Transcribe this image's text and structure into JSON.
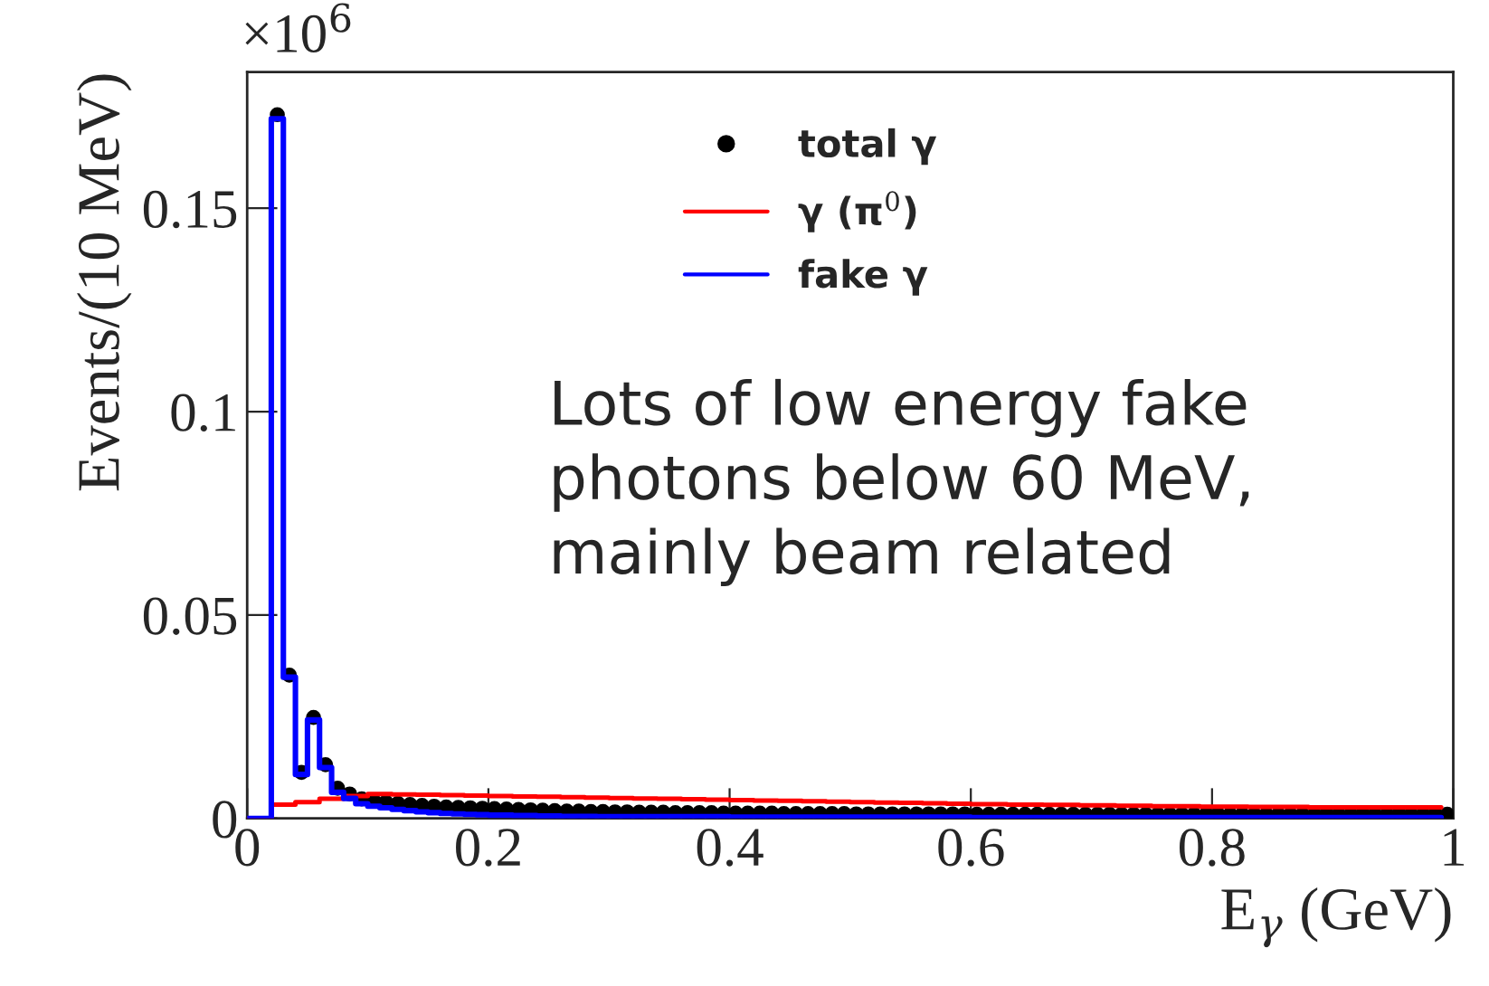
{
  "chart_data": {
    "type": "step",
    "xlabel": "E$_{γ}$ (GeV)",
    "ylabel": "Events/(10 MeV)",
    "x": [
      0,
      0.01,
      0.02,
      0.03,
      0.04,
      0.05,
      0.06,
      0.07,
      0.08,
      0.09,
      0.1,
      0.11,
      0.12,
      0.13,
      0.14,
      0.15,
      0.16,
      0.17,
      0.18,
      0.19,
      0.2,
      0.21,
      0.22,
      0.23,
      0.24,
      0.25,
      0.26,
      0.27,
      0.28,
      0.29,
      0.3,
      0.31,
      0.32,
      0.33,
      0.34,
      0.35,
      0.36,
      0.37,
      0.38,
      0.39,
      0.4,
      0.41,
      0.42,
      0.43,
      0.44,
      0.45,
      0.46,
      0.47,
      0.48,
      0.49,
      0.5,
      0.51,
      0.52,
      0.53,
      0.54,
      0.55,
      0.56,
      0.57,
      0.58,
      0.59,
      0.6,
      0.61,
      0.62,
      0.63,
      0.64,
      0.65,
      0.66,
      0.67,
      0.68,
      0.69,
      0.7,
      0.71,
      0.72,
      0.73,
      0.74,
      0.75,
      0.76,
      0.77,
      0.78,
      0.79,
      0.8,
      0.81,
      0.82,
      0.83,
      0.84,
      0.85,
      0.86,
      0.87,
      0.88,
      0.89,
      0.9,
      0.91,
      0.92,
      0.93,
      0.94,
      0.95,
      0.96,
      0.97,
      0.98,
      0.99
    ],
    "series": [
      {
        "name": "total γ",
        "type": "scatter",
        "marker": "circle",
        "color": "#000000",
        "x": [
          0.025,
          0.035,
          0.045,
          0.055,
          0.065,
          0.075,
          0.085,
          0.095,
          0.105,
          0.115,
          0.125,
          0.135,
          0.145,
          0.155,
          0.165,
          0.175,
          0.185,
          0.195,
          0.205,
          0.215,
          0.225,
          0.235,
          0.245,
          0.255,
          0.265,
          0.275,
          0.285,
          0.295,
          0.305,
          0.315,
          0.325,
          0.335,
          0.345,
          0.355,
          0.365,
          0.375,
          0.385,
          0.395,
          0.405,
          0.415,
          0.425,
          0.435,
          0.445,
          0.455,
          0.465,
          0.475,
          0.485,
          0.495,
          0.505,
          0.515,
          0.525,
          0.535,
          0.545,
          0.555,
          0.565,
          0.575,
          0.585,
          0.595,
          0.605,
          0.615,
          0.625,
          0.635,
          0.645,
          0.655,
          0.665,
          0.675,
          0.685,
          0.695,
          0.705,
          0.715,
          0.725,
          0.735,
          0.745,
          0.755,
          0.765,
          0.775,
          0.785,
          0.795,
          0.805,
          0.815,
          0.825,
          0.835,
          0.845,
          0.855,
          0.865,
          0.875,
          0.885,
          0.895,
          0.905,
          0.915,
          0.925,
          0.935,
          0.945,
          0.955,
          0.965,
          0.975,
          0.985,
          0.995
        ],
        "values": [
          0.173,
          0.0352,
          0.0113,
          0.0248,
          0.0132,
          0.0074,
          0.006,
          0.0048,
          0.0043,
          0.004,
          0.0037,
          0.0034,
          0.0032,
          0.003,
          0.0028,
          0.0027,
          0.0026,
          0.0025,
          0.0024,
          0.0023,
          0.0022,
          0.0021,
          0.002,
          0.0019,
          0.0018,
          0.0018,
          0.0017,
          0.0017,
          0.0016,
          0.0016,
          0.0015,
          0.0015,
          0.0015,
          0.0014,
          0.0014,
          0.0014,
          0.0014,
          0.0013,
          0.0013,
          0.0013,
          0.0013,
          0.0013,
          0.0012,
          0.0012,
          0.0012,
          0.0012,
          0.0012,
          0.0012,
          0.0011,
          0.0011,
          0.0011,
          0.0011,
          0.0011,
          0.0011,
          0.0011,
          0.0011,
          0.0011,
          0.0011,
          0.001,
          0.001,
          0.001,
          0.001,
          0.001,
          0.001,
          0.001,
          0.001,
          0.001,
          0.001,
          0.001,
          0.001,
          0.001,
          0.001,
          0.001,
          0.001,
          0.001,
          0.001,
          0.001,
          0.001,
          0.001,
          0.001,
          0.001,
          0.001,
          0.001,
          0.001,
          0.001,
          0.001,
          0.001,
          0.001,
          0.001,
          0.001,
          0.001,
          0.001,
          0.001,
          0.001,
          0.001,
          0.001,
          0.001,
          0.001
        ]
      },
      {
        "name": "γ (π$^{0}$)",
        "type": "step",
        "color": "#ff0000",
        "values": [
          0,
          0,
          0.0034,
          0.0034,
          0.004,
          0.004,
          0.0048,
          0.0048,
          0.0055,
          0.0055,
          0.006,
          0.006,
          0.0059,
          0.0059,
          0.0058,
          0.0058,
          0.0057,
          0.0057,
          0.0056,
          0.0056,
          0.0055,
          0.0055,
          0.0054,
          0.0054,
          0.0053,
          0.0053,
          0.0052,
          0.0052,
          0.0051,
          0.0051,
          0.005,
          0.005,
          0.0049,
          0.0049,
          0.0048,
          0.0048,
          0.0047,
          0.0047,
          0.0046,
          0.0046,
          0.0045,
          0.0045,
          0.0044,
          0.0044,
          0.0043,
          0.0043,
          0.0042,
          0.0042,
          0.0041,
          0.0041,
          0.004,
          0.004,
          0.0039,
          0.0039,
          0.0038,
          0.0038,
          0.0037,
          0.0037,
          0.0036,
          0.0036,
          0.0035,
          0.0035,
          0.0035,
          0.0034,
          0.0034,
          0.0034,
          0.0033,
          0.0033,
          0.0033,
          0.0032,
          0.0032,
          0.0032,
          0.0031,
          0.0031,
          0.0031,
          0.003,
          0.003,
          0.003,
          0.003,
          0.0029,
          0.0029,
          0.0029,
          0.0029,
          0.0028,
          0.0028,
          0.0028,
          0.0028,
          0.0028,
          0.0027,
          0.0027,
          0.0027,
          0.0027,
          0.0027,
          0.0027,
          0.0027,
          0.0027,
          0.0027,
          0.0027,
          0.0027,
          0.0027
        ]
      },
      {
        "name": "fake γ",
        "type": "step",
        "color": "#0000ff",
        "values": [
          0,
          0,
          0.172,
          0.0347,
          0.0108,
          0.0242,
          0.0125,
          0.0064,
          0.0049,
          0.0036,
          0.003,
          0.0026,
          0.0022,
          0.0019,
          0.0016,
          0.0014,
          0.0012,
          0.0011,
          0.001,
          0.0009,
          0.0008,
          0.0008,
          0.0007,
          0.0007,
          0.0006,
          0.0006,
          0.0005,
          0.0005,
          0.0005,
          0.0004,
          0.0004,
          0.0004,
          0.0004,
          0.0004,
          0.0004,
          0.0004,
          0.0004,
          0.0004,
          0.0004,
          0.0004,
          0.0003,
          0.0003,
          0.0003,
          0.0003,
          0.0003,
          0.0003,
          0.0003,
          0.0003,
          0.0003,
          0.0003,
          0.0003,
          0.0003,
          0.0003,
          0.0003,
          0.0003,
          0.0003,
          0.0003,
          0.0003,
          0.0003,
          0.0003,
          0.0002,
          0.0002,
          0.0002,
          0.0002,
          0.0002,
          0.0002,
          0.0002,
          0.0002,
          0.0002,
          0.0002,
          0.0002,
          0.0002,
          0.0002,
          0.0002,
          0.0002,
          0.0002,
          0.0002,
          0.0002,
          0.0002,
          0.0002,
          0.0002,
          0.0002,
          0.0002,
          0.0002,
          0.0002,
          0.0002,
          0.0002,
          0.0002,
          0.0002,
          0.0002,
          0.0002,
          0.0002,
          0.0002,
          0.0002,
          0.0002,
          0.0002,
          0.0002,
          0.0002,
          0.0002,
          0.0002
        ]
      }
    ],
    "xlim": [
      0,
      1
    ],
    "xticks": [
      0,
      0.2,
      0.4,
      0.6,
      0.8,
      1
    ],
    "ylim": [
      0,
      0.1835
    ],
    "yticks": [
      0,
      0.05,
      0.1,
      0.15
    ],
    "legend": "top right",
    "grid": false,
    "annotations": [
      "×10$^{6}$",
      "Lots of low energy fake\nphotons below 60 MeV,\nmainly beam related"
    ]
  }
}
